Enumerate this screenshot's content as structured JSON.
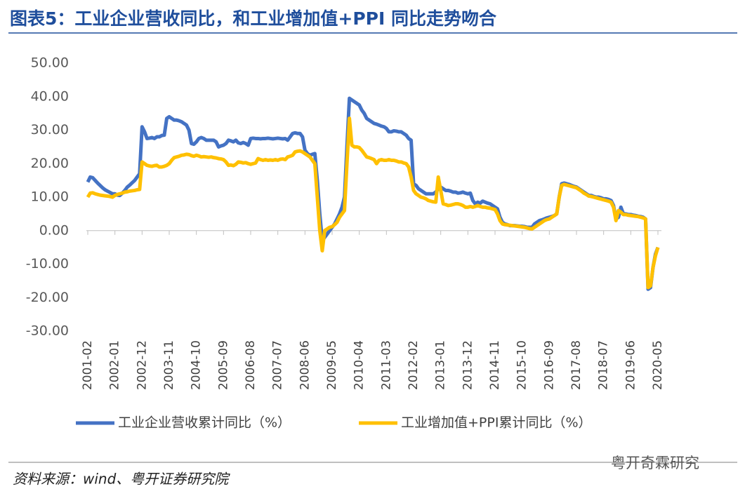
{
  "chart_data": {
    "type": "line",
    "title": "图表5：工业企业营收同比，和工业增加值+PPI 同比走势吻合",
    "source": "资料来源：wind、粤开证券研究院",
    "watermark": "粤开奇霖研究",
    "ylim": [
      -30,
      50
    ],
    "yticks": [
      {
        "value": 50,
        "label": "50.00"
      },
      {
        "value": 40,
        "label": "40.00"
      },
      {
        "value": 30,
        "label": "30.00"
      },
      {
        "value": 20,
        "label": "20.00"
      },
      {
        "value": 10,
        "label": "10.00"
      },
      {
        "value": 0,
        "label": "0.00"
      },
      {
        "value": -10,
        "label": "-10.00"
      },
      {
        "value": -20,
        "label": "-20.00"
      },
      {
        "value": -30,
        "label": "-30.00"
      }
    ],
    "categories": [
      "2001-02",
      null,
      null,
      null,
      null,
      null,
      null,
      null,
      null,
      null,
      null,
      "2002-01",
      null,
      null,
      null,
      null,
      null,
      null,
      null,
      null,
      null,
      null,
      "2002-12",
      null,
      null,
      null,
      null,
      null,
      null,
      null,
      null,
      null,
      null,
      "2003-11",
      null,
      null,
      null,
      null,
      null,
      null,
      null,
      null,
      null,
      null,
      "2004-10",
      null,
      null,
      null,
      null,
      null,
      null,
      null,
      null,
      null,
      null,
      "2005-09",
      null,
      null,
      null,
      null,
      null,
      null,
      null,
      null,
      null,
      null,
      "2006-08",
      null,
      null,
      null,
      null,
      null,
      null,
      null,
      null,
      null,
      null,
      "2007-07",
      null,
      null,
      null,
      null,
      null,
      null,
      null,
      null,
      null,
      null,
      "2008-06",
      null,
      null,
      null,
      null,
      null,
      null,
      null,
      null,
      null,
      null,
      "2009-05",
      null,
      null,
      null,
      null,
      null,
      null,
      null,
      null,
      null,
      null,
      "2010-04",
      null,
      null,
      null,
      null,
      null,
      null,
      null,
      null,
      null,
      null,
      "2011-03",
      null,
      null,
      null,
      null,
      null,
      null,
      null,
      null,
      null,
      null,
      "2012-02",
      null,
      null,
      null,
      null,
      null,
      null,
      null,
      null,
      null,
      null,
      "2013-01",
      null,
      null,
      null,
      null,
      null,
      null,
      null,
      null,
      null,
      null,
      "2013-12",
      null,
      null,
      null,
      null,
      null,
      null,
      null,
      null,
      null,
      null,
      "2014-11",
      null,
      null,
      null,
      null,
      null,
      null,
      null,
      null,
      null,
      null,
      "2015-10",
      null,
      null,
      null,
      null,
      null,
      null,
      null,
      null,
      null,
      null,
      "2016-09",
      null,
      null,
      null,
      null,
      null,
      null,
      null,
      null,
      null,
      null,
      "2017-08",
      null,
      null,
      null,
      null,
      null,
      null,
      null,
      null,
      null,
      null,
      "2018-07",
      null,
      null,
      null,
      null,
      null,
      null,
      null,
      null,
      null,
      null,
      "2019-06",
      null,
      null,
      null,
      null,
      null,
      null,
      null,
      null,
      null,
      null,
      "2020-05"
    ],
    "series": [
      {
        "name": "工业企业营收累计同比（%）",
        "color": "#4472c4",
        "values": [
          14.5,
          16,
          15.8,
          15,
          14.2,
          13.5,
          12.8,
          12.2,
          11.8,
          11.4,
          11,
          11,
          10.6,
          10.5,
          11.2,
          12,
          13,
          13.6,
          14.3,
          15,
          16,
          17,
          31,
          29.5,
          27.5,
          27.6,
          27.8,
          27.5,
          28,
          28,
          28.4,
          28.5,
          33.5,
          34,
          33.5,
          33,
          33,
          32.8,
          32.5,
          32,
          31.5,
          30,
          26,
          25.8,
          26.5,
          27.5,
          27.8,
          27.5,
          27,
          27,
          27,
          27,
          26.5,
          25,
          25.3,
          25.5,
          26,
          27,
          26.8,
          26.5,
          27,
          26.2,
          26,
          26.3,
          26,
          25.5,
          27.5,
          27.6,
          27.5,
          27.5,
          27.4,
          27.5,
          27.5,
          27.6,
          27.5,
          27.4,
          27.5,
          27.6,
          27.5,
          27.4,
          27.5,
          27,
          28,
          29,
          29.2,
          29,
          29,
          28,
          24,
          23,
          22.5,
          22.8,
          23,
          15,
          5,
          -3,
          -2,
          -1,
          0,
          1,
          2,
          3.5,
          5,
          7,
          10,
          25,
          39.5,
          39,
          38.5,
          38,
          37.5,
          36,
          35,
          33.5,
          33,
          32.5,
          32,
          31.8,
          31.5,
          31.2,
          31,
          30.5,
          29.5,
          29.5,
          29.8,
          29.7,
          29.5,
          29.5,
          29,
          28.5,
          27.5,
          27,
          14,
          13.5,
          12.5,
          12,
          11.5,
          11,
          11,
          11,
          11,
          11.5,
          12.5,
          13,
          12.5,
          12,
          12,
          11.8,
          11.5,
          11.5,
          11.2,
          11.3,
          11.5,
          11.2,
          11,
          11.2,
          9,
          8,
          8.5,
          8.2,
          8.8,
          8.5,
          8.2,
          8,
          7.5,
          7,
          6.5,
          4,
          2.5,
          2,
          1.8,
          1.5,
          1.5,
          1.5,
          1.4,
          1.3,
          1.3,
          1.2,
          1,
          1,
          1,
          2,
          2.5,
          3,
          3.2,
          3.5,
          3.8,
          4,
          4.2,
          4.5,
          5,
          10,
          14,
          14.2,
          14,
          13.8,
          13.5,
          13.2,
          13,
          12.5,
          12,
          11.5,
          11,
          10.5,
          10.5,
          10.2,
          10,
          10,
          9.8,
          9.5,
          9.5,
          9.3,
          9,
          7.5,
          3.5,
          4,
          7,
          5,
          5,
          4.8,
          4.8,
          4.6,
          4.5,
          4.3,
          4.2,
          4,
          3.5,
          -17.5,
          -17,
          -11,
          -7,
          -5
        ]
      },
      {
        "name": "工业增加值+PPI累计同比（%）",
        "color": "#ffc000",
        "values": [
          10,
          11.2,
          11.3,
          11,
          10.8,
          10.6,
          10.5,
          10.4,
          10.3,
          10.2,
          10,
          10.5,
          10.8,
          11,
          11.2,
          11.5,
          11.6,
          11.8,
          11.9,
          12,
          12.2,
          12.3,
          20.5,
          20,
          19.5,
          19.3,
          19.2,
          19.4,
          19.5,
          19,
          19,
          19.2,
          19.5,
          20,
          21,
          21.8,
          22,
          22.2,
          22.5,
          22.6,
          22.8,
          22.7,
          22.4,
          22.2,
          22.5,
          22.3,
          22,
          22.1,
          22,
          21.9,
          22,
          21.8,
          21.7,
          21.5,
          21.4,
          21.2,
          20.5,
          19.5,
          19.6,
          19.4,
          19.8,
          20.5,
          20.4,
          20.2,
          20.3,
          20,
          19.8,
          20,
          20.2,
          21.5,
          21.2,
          21,
          21.2,
          21,
          21.1,
          21,
          21.2,
          21,
          21.3,
          21.4,
          21.2,
          22,
          22.2,
          22.5,
          23.5,
          23.7,
          23.8,
          23.5,
          23,
          22.5,
          22,
          21,
          20,
          10,
          0,
          -6,
          0,
          0.5,
          1,
          1.2,
          1.8,
          2.5,
          4,
          5,
          6,
          20,
          33.5,
          25.5,
          25,
          25,
          24.8,
          24,
          23,
          22,
          21.8,
          21.5,
          21.2,
          20,
          21,
          21.2,
          21,
          21,
          21.2,
          21,
          21,
          20.8,
          20.5,
          20.5,
          20.2,
          20,
          19,
          16,
          12,
          11,
          10.5,
          10,
          9.8,
          9.5,
          9,
          8.8,
          8.6,
          8.5,
          16,
          12,
          8,
          7.8,
          7.5,
          7.6,
          7.8,
          8,
          8,
          7.8,
          7.5,
          7,
          7,
          7.2,
          7,
          7.2,
          7.5,
          7.2,
          7,
          7,
          6.8,
          6.7,
          6.5,
          6.3,
          5,
          3,
          2,
          1.8,
          1.7,
          1.6,
          1.5,
          1.4,
          1.3,
          1.2,
          1.1,
          1,
          0.8,
          0.6,
          0.5,
          1,
          1.5,
          2,
          2.5,
          3,
          3.3,
          3.5,
          4,
          4.5,
          5,
          10,
          13.5,
          13.8,
          13.6,
          13.4,
          13.2,
          13,
          12.8,
          12.3,
          11.8,
          11.2,
          10.8,
          10.3,
          10.2,
          10,
          9.8,
          9.6,
          9.4,
          9.2,
          9,
          8.8,
          8.5,
          7,
          3,
          6,
          5.5,
          4.8,
          4.8,
          4.6,
          4.5,
          4.4,
          4.3,
          4.2,
          4,
          3.8,
          3.5,
          -17,
          -16.5,
          -11,
          -7.5,
          -5
        ]
      }
    ]
  }
}
